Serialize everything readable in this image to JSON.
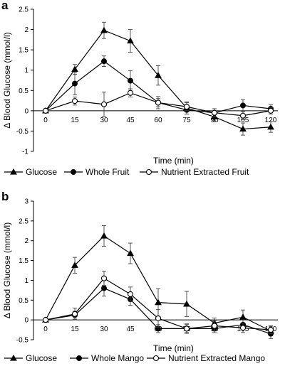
{
  "chart_data": [
    {
      "panel_label": "a",
      "type": "line",
      "title": "",
      "xlabel": "Time (min)",
      "ylabel": "Δ Blood Glucose (mmol/l)",
      "x": [
        0,
        15,
        30,
        45,
        60,
        75,
        90,
        105,
        120
      ],
      "xticks": [
        "0",
        "15",
        "30",
        "45",
        "60",
        "75",
        "90",
        "105",
        "120"
      ],
      "ylim": [
        -1,
        2.5
      ],
      "yticks": [
        "-1",
        "-0.5",
        "0",
        "0.5",
        "1",
        "1.5",
        "2",
        "2.5"
      ],
      "grid": false,
      "legend_position": "bottom",
      "series": [
        {
          "name": "Glucose",
          "marker": "triangle",
          "values": [
            0,
            1.02,
            1.98,
            1.72,
            0.87,
            0.07,
            -0.15,
            -0.45,
            -0.4
          ],
          "errors": [
            0,
            0.12,
            0.2,
            0.28,
            0.24,
            0.15,
            0.12,
            0.15,
            0.13
          ]
        },
        {
          "name": "Whole Fruit",
          "marker": "filled-circle",
          "values": [
            0,
            0.67,
            1.22,
            0.74,
            0.2,
            0.02,
            -0.05,
            0.13,
            0.05
          ],
          "errors": [
            0,
            0.28,
            0.13,
            0.25,
            0.15,
            0.1,
            0.1,
            0.14,
            0.1
          ]
        },
        {
          "name": "Nutrient Extracted Fruit",
          "marker": "open-circle",
          "values": [
            0,
            0.24,
            0.16,
            0.44,
            0.2,
            0.1,
            -0.05,
            -0.12,
            0
          ],
          "errors": [
            0,
            0.1,
            0.3,
            0.1,
            0.1,
            0.1,
            0.1,
            0.1,
            0.08
          ]
        }
      ]
    },
    {
      "panel_label": "b",
      "type": "line",
      "title": "",
      "xlabel": "Time (min)",
      "ylabel": "Δ Blood Glucose (mmol/l)",
      "x": [
        0,
        15,
        30,
        45,
        60,
        75,
        90,
        105,
        120
      ],
      "xticks": [
        "0",
        "15",
        "30",
        "45",
        "60",
        "75",
        "90",
        "105",
        "120"
      ],
      "ylim": [
        -0.5,
        3
      ],
      "yticks": [
        "-0.5",
        "0",
        "0.5",
        "1",
        "1.5",
        "2",
        "2.5",
        "3"
      ],
      "grid": false,
      "legend_position": "bottom",
      "series": [
        {
          "name": "Glucose",
          "marker": "triangle",
          "values": [
            0,
            1.38,
            2.12,
            1.68,
            0.44,
            0.4,
            -0.08,
            0.07,
            -0.28
          ],
          "errors": [
            0,
            0.2,
            0.26,
            0.26,
            0.35,
            0.32,
            0.13,
            0.18,
            0.12
          ]
        },
        {
          "name": "Whole Mango",
          "marker": "filled-circle",
          "values": [
            0,
            0.12,
            0.8,
            0.52,
            -0.22,
            -0.22,
            -0.22,
            -0.12,
            -0.35
          ],
          "errors": [
            0,
            0.1,
            0.2,
            0.15,
            0.1,
            0.1,
            0.1,
            0.12,
            0.12
          ]
        },
        {
          "name": "Nutrient Extracted Mango",
          "marker": "open-circle",
          "values": [
            0,
            0.15,
            1.05,
            0.65,
            0.04,
            -0.22,
            -0.15,
            -0.2,
            -0.25
          ],
          "errors": [
            0,
            0.15,
            0.18,
            0.18,
            0.22,
            0.12,
            0.13,
            0.12,
            0.1
          ]
        }
      ]
    }
  ]
}
